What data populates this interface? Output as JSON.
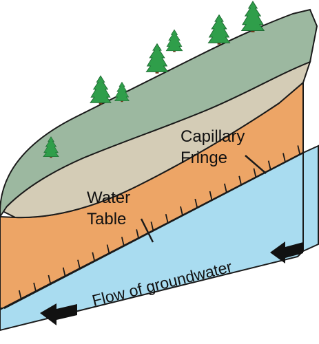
{
  "labels": {
    "capillary_line1": "Capillary",
    "capillary_line2": "Fringe",
    "water_line1": "Water",
    "water_line2": "Table",
    "flow": "Flow of groundwater"
  },
  "colors": {
    "grass_top": "#9cb8a0",
    "soil_layer": "#d4ccb6",
    "sand_unsaturated": "#eda566",
    "groundwater": "#a9dcf0",
    "outline": "#1a1a1a",
    "tree": "#2f9e4a",
    "trunk": "#6b3a1a"
  },
  "icons": {
    "trees": "pine-tree-icon",
    "arrows": "left-arrow-icon"
  }
}
